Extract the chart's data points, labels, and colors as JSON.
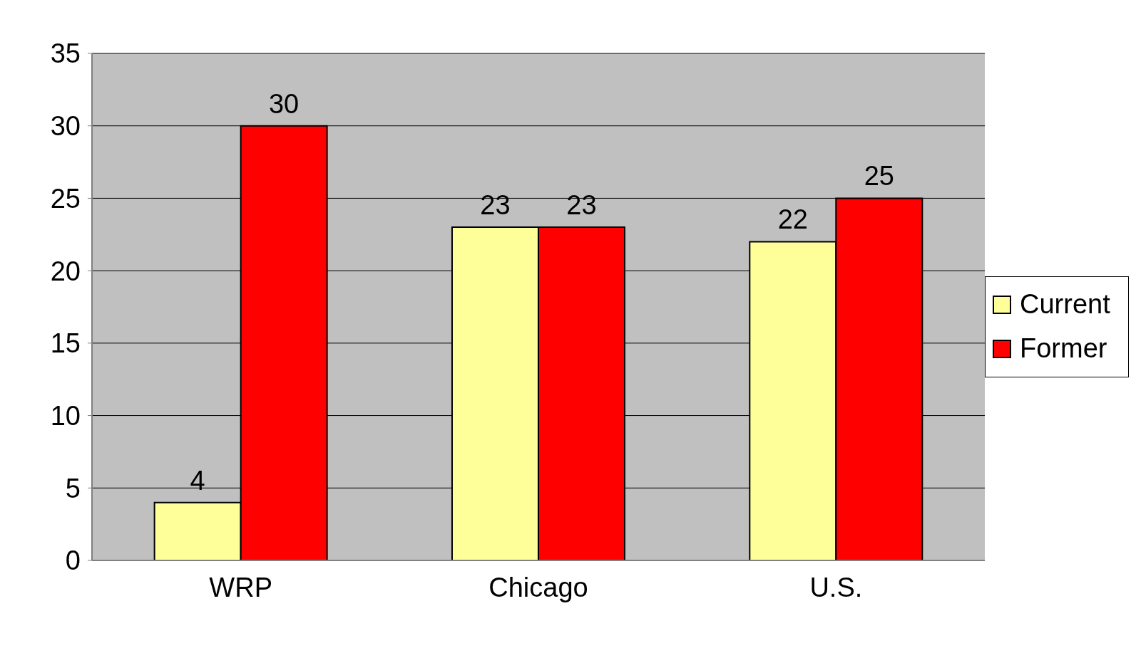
{
  "chart_data": {
    "type": "bar",
    "categories": [
      "WRP",
      "Chicago",
      "U.S."
    ],
    "series": [
      {
        "name": "Current",
        "color": "#ffff99",
        "values": [
          4,
          23,
          22
        ]
      },
      {
        "name": "Former",
        "color": "#ff0000",
        "values": [
          30,
          23,
          25
        ]
      }
    ],
    "ylim": [
      0,
      35
    ],
    "yticks": [
      0,
      5,
      10,
      15,
      20,
      25,
      30,
      35
    ],
    "grid": "y",
    "legend": "right",
    "data_labels": true
  }
}
